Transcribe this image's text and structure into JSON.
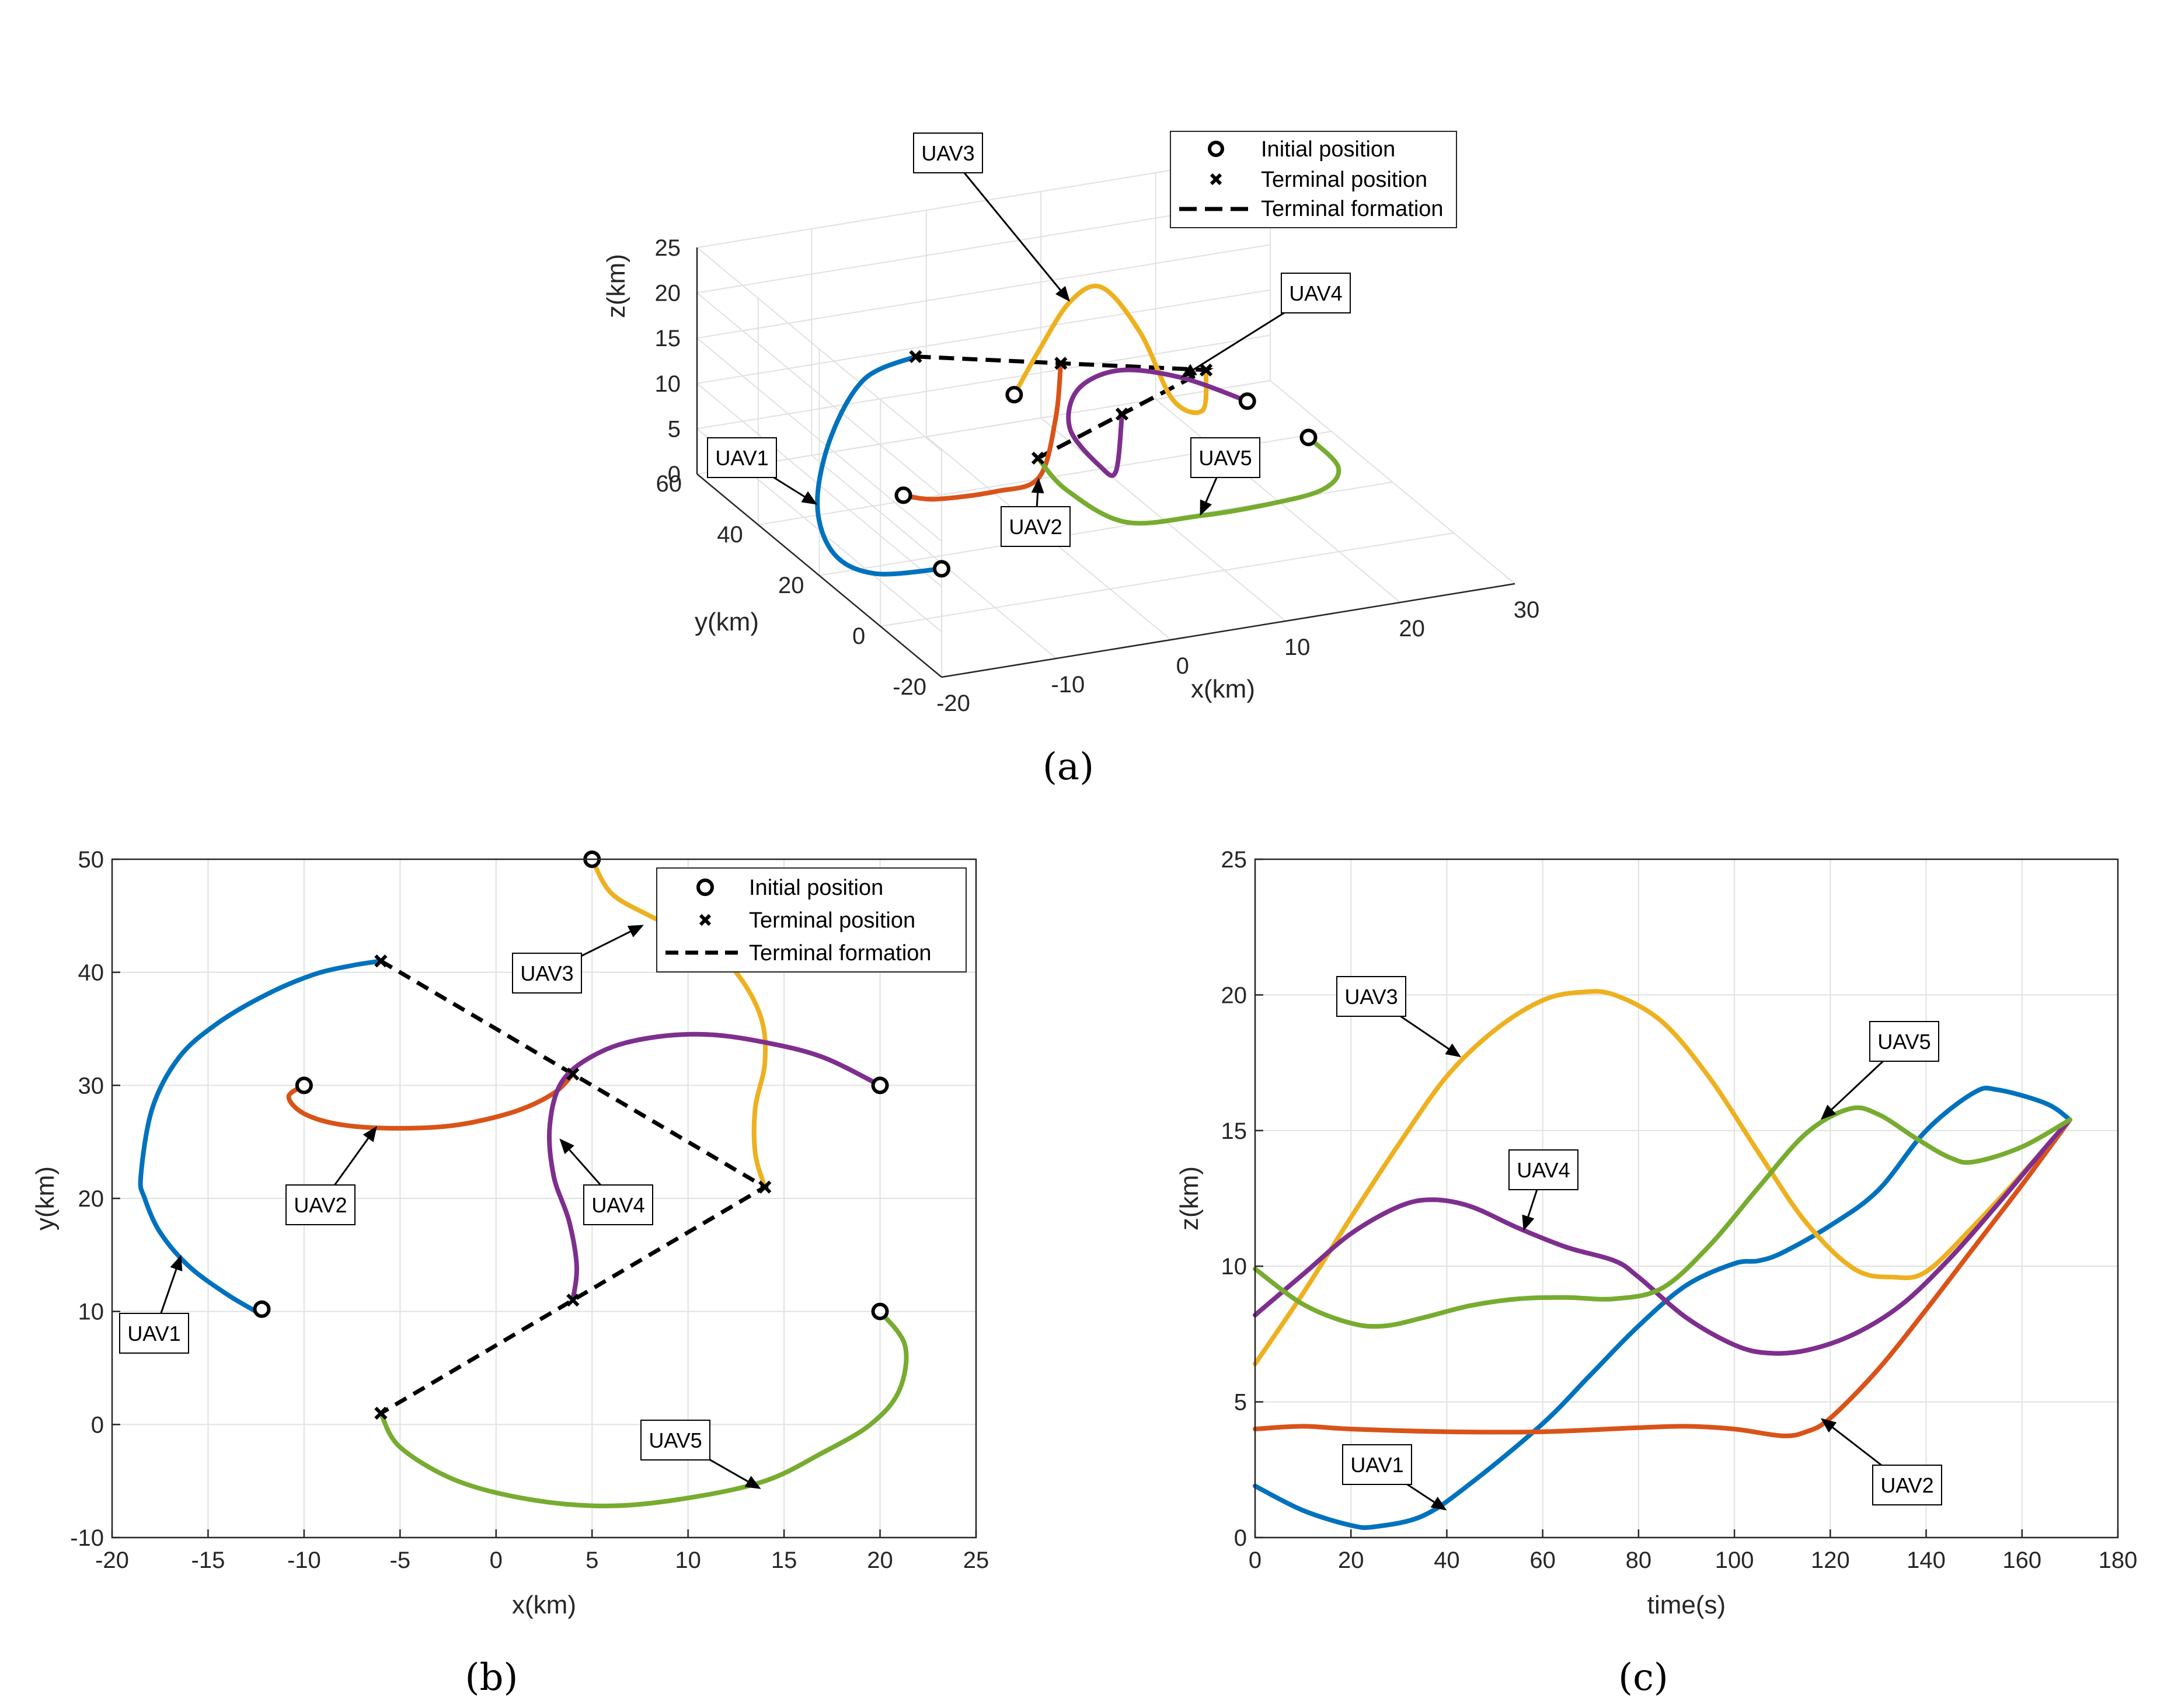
{
  "colors": {
    "UAV1": "#0072BD",
    "UAV2": "#D95319",
    "UAV3": "#EDB120",
    "UAV4": "#7E2F8E",
    "UAV5": "#77AC30"
  },
  "legend": {
    "initial": "Initial position",
    "terminal": "Terminal position",
    "formation": "Terminal formation"
  },
  "captions": {
    "a": "(a)",
    "b": "(b)",
    "c": "(c)"
  },
  "chart_data": [
    {
      "id": "a",
      "type": "line",
      "subtype": "3d-trajectory",
      "xlabel": "x(km)",
      "ylabel": "y(km)",
      "zlabel": "z(km)",
      "xlim": [
        -20,
        30
      ],
      "ylim": [
        -20,
        60
      ],
      "zlim": [
        0,
        25
      ],
      "xticks": [
        -20,
        -10,
        0,
        10,
        20,
        30
      ],
      "yticks": [
        -20,
        0,
        20,
        40,
        60
      ],
      "zticks": [
        0,
        5,
        10,
        15,
        20,
        25
      ],
      "grid": true,
      "legend_position": "top-right",
      "series": [
        {
          "name": "UAV1",
          "points": [
            [
              -12,
              10,
              1.9
            ],
            [
              -16.5,
              15,
              0.9
            ],
            [
              -18.2,
              22,
              1.5
            ],
            [
              -17.5,
              30,
              4.5
            ],
            [
              -15,
              35,
              10
            ],
            [
              -11,
              39,
              14.5
            ],
            [
              -6,
              41,
              15.4
            ]
          ]
        },
        {
          "name": "UAV2",
          "points": [
            [
              -10,
              30,
              4.0
            ],
            [
              -8,
              27,
              4.0
            ],
            [
              -3,
              26,
              4.1
            ],
            [
              1,
              27,
              4.5
            ],
            [
              3,
              29,
              10
            ],
            [
              4,
              31,
              15.4
            ]
          ]
        },
        {
          "name": "UAV3",
          "points": [
            [
              5,
              50,
              6.4
            ],
            [
              6,
              46,
              12
            ],
            [
              8,
              43,
              18
            ],
            [
              10,
              40,
              20
            ],
            [
              12,
              35,
              16
            ],
            [
              13.5,
              30,
              9.7
            ],
            [
              14.5,
              24,
              10
            ],
            [
              14,
              21,
              15.4
            ]
          ]
        },
        {
          "name": "UAV4",
          "points": [
            [
              20,
              30,
              8.2
            ],
            [
              15,
              33,
              11
            ],
            [
              10,
              34.5,
              12.4
            ],
            [
              6,
              33,
              11.5
            ],
            [
              4,
              28,
              9
            ],
            [
              4.5,
              20,
              7
            ],
            [
              4,
              13,
              8.5
            ],
            [
              4,
              11,
              15.4
            ]
          ]
        },
        {
          "name": "UAV5",
          "points": [
            [
              20,
              10,
              9.8
            ],
            [
              21,
              4,
              8
            ],
            [
              18,
              -2,
              7.8
            ],
            [
              12,
              -6,
              8.5
            ],
            [
              6,
              -7,
              8.8
            ],
            [
              0,
              -5,
              8.8
            ],
            [
              -4,
              -1,
              12
            ],
            [
              -6,
              1,
              15.4
            ]
          ]
        }
      ],
      "initial_positions": [
        [
          -12,
          10,
          1.9
        ],
        [
          -10,
          30,
          4.0
        ],
        [
          5,
          50,
          6.4
        ],
        [
          20,
          30,
          8.2
        ],
        [
          20,
          10,
          9.8
        ]
      ],
      "terminal_positions": [
        [
          -6,
          41,
          15.4
        ],
        [
          4,
          31,
          15.4
        ],
        [
          14,
          21,
          15.4
        ],
        [
          4,
          11,
          15.4
        ],
        [
          -6,
          1,
          15.4
        ]
      ],
      "labels": [
        "UAV1",
        "UAV2",
        "UAV3",
        "UAV4",
        "UAV5"
      ]
    },
    {
      "id": "b",
      "type": "line",
      "xlabel": "x(km)",
      "ylabel": "y(km)",
      "xlim": [
        -20,
        25
      ],
      "ylim": [
        -10,
        50
      ],
      "xticks": [
        -20,
        -15,
        -10,
        -5,
        0,
        5,
        10,
        15,
        20,
        25
      ],
      "yticks": [
        -10,
        0,
        10,
        20,
        30,
        40,
        50
      ],
      "grid": true,
      "legend_position": "top-right",
      "series": [
        {
          "name": "UAV1",
          "x": [
            -12.5,
            -14,
            -16,
            -17.5,
            -18.3,
            -18.5,
            -17.9,
            -16.5,
            -14.5,
            -12,
            -9.5,
            -7.5,
            -6
          ],
          "y": [
            10,
            11.5,
            14,
            17,
            20,
            22,
            28,
            32.5,
            35.5,
            38,
            39.8,
            40.6,
            41
          ]
        },
        {
          "name": "UAV2",
          "x": [
            -10,
            -10.8,
            -10,
            -8,
            -5,
            -2,
            1,
            3,
            4
          ],
          "y": [
            30,
            29,
            27.5,
            26.5,
            26.2,
            26.5,
            27.7,
            29.3,
            31
          ]
        },
        {
          "name": "UAV3",
          "x": [
            5,
            6,
            8,
            10.5,
            12.5,
            13.8,
            14,
            13.5,
            13.5,
            14
          ],
          "y": [
            50,
            47,
            45,
            43,
            40,
            36,
            32,
            28,
            24,
            21
          ]
        },
        {
          "name": "UAV4",
          "x": [
            20,
            17,
            14,
            11,
            8,
            5.5,
            3.5,
            2.8,
            3,
            3.8,
            4.2,
            4
          ],
          "y": [
            30,
            32.5,
            33.8,
            34.5,
            34.2,
            33,
            30.5,
            26.5,
            22,
            18,
            14,
            11
          ]
        },
        {
          "name": "UAV5",
          "x": [
            20,
            21.3,
            21,
            19.5,
            17,
            14,
            10,
            6,
            2,
            -2,
            -5,
            -6
          ],
          "y": [
            10,
            7,
            3,
            0,
            -2.5,
            -5,
            -6.5,
            -7.2,
            -6.7,
            -5,
            -2,
            1
          ]
        }
      ],
      "initial_positions": [
        [
          -12.2,
          10.2
        ],
        [
          -10,
          30
        ],
        [
          5,
          50
        ],
        [
          20,
          30
        ],
        [
          20,
          10
        ]
      ],
      "terminal_positions": [
        [
          -6,
          41
        ],
        [
          4,
          31
        ],
        [
          14,
          21
        ],
        [
          4,
          11
        ],
        [
          -6,
          1
        ]
      ],
      "formation_path": [
        [
          -6,
          41
        ],
        [
          4,
          31
        ],
        [
          14,
          21
        ],
        [
          4,
          11
        ],
        [
          -6,
          1
        ]
      ],
      "labels": [
        "UAV1",
        "UAV2",
        "UAV3",
        "UAV4",
        "UAV5"
      ]
    },
    {
      "id": "c",
      "type": "line",
      "xlabel": "time(s)",
      "ylabel": "z(km)",
      "xlim": [
        0,
        180
      ],
      "ylim": [
        0,
        25
      ],
      "xticks": [
        0,
        20,
        40,
        60,
        80,
        100,
        120,
        140,
        160,
        180
      ],
      "yticks": [
        0,
        5,
        10,
        15,
        20,
        25
      ],
      "grid": true,
      "series": [
        {
          "name": "UAV1",
          "x": [
            0,
            10,
            20,
            25,
            35,
            45,
            60,
            70,
            80,
            90,
            100,
            105,
            110,
            120,
            130,
            140,
            150,
            155,
            165,
            170
          ],
          "y": [
            1.9,
            1.0,
            0.45,
            0.4,
            0.8,
            2.0,
            4.2,
            6.0,
            7.8,
            9.3,
            10.1,
            10.2,
            10.5,
            11.5,
            12.8,
            15.0,
            16.4,
            16.5,
            16.0,
            15.4
          ]
        },
        {
          "name": "UAV2",
          "x": [
            0,
            10,
            20,
            40,
            60,
            80,
            90,
            100,
            110,
            115,
            120,
            130,
            140,
            150,
            160,
            170
          ],
          "y": [
            4.0,
            4.1,
            4.0,
            3.9,
            3.9,
            4.05,
            4.1,
            4.0,
            3.75,
            3.9,
            4.4,
            6.2,
            8.4,
            10.7,
            13.0,
            15.4
          ]
        },
        {
          "name": "UAV3",
          "x": [
            0,
            10,
            20,
            30,
            40,
            50,
            60,
            68,
            75,
            85,
            95,
            105,
            115,
            125,
            133,
            140,
            150,
            160,
            170
          ],
          "y": [
            6.4,
            9.0,
            11.8,
            14.5,
            17.0,
            18.7,
            19.8,
            20.1,
            20.0,
            19.0,
            16.9,
            14.2,
            11.6,
            9.9,
            9.6,
            9.8,
            11.5,
            13.4,
            15.4
          ]
        },
        {
          "name": "UAV4",
          "x": [
            0,
            10,
            20,
            30,
            37,
            45,
            55,
            65,
            75,
            80,
            90,
            100,
            107,
            115,
            125,
            135,
            145,
            155,
            165,
            170
          ],
          "y": [
            8.2,
            9.7,
            11.2,
            12.2,
            12.45,
            12.2,
            11.4,
            10.7,
            10.2,
            9.6,
            8.1,
            7.1,
            6.8,
            6.9,
            7.5,
            8.6,
            10.3,
            12.3,
            14.4,
            15.4
          ]
        },
        {
          "name": "UAV5",
          "x": [
            0,
            10,
            20,
            27,
            35,
            45,
            55,
            65,
            75,
            85,
            95,
            105,
            115,
            124,
            130,
            138,
            145,
            150,
            160,
            170
          ],
          "y": [
            9.9,
            8.6,
            7.9,
            7.8,
            8.1,
            8.55,
            8.8,
            8.85,
            8.8,
            9.2,
            10.8,
            12.9,
            14.9,
            15.8,
            15.6,
            14.7,
            14.0,
            13.85,
            14.4,
            15.4
          ]
        }
      ],
      "labels": [
        "UAV1",
        "UAV2",
        "UAV3",
        "UAV4",
        "UAV5"
      ]
    }
  ]
}
